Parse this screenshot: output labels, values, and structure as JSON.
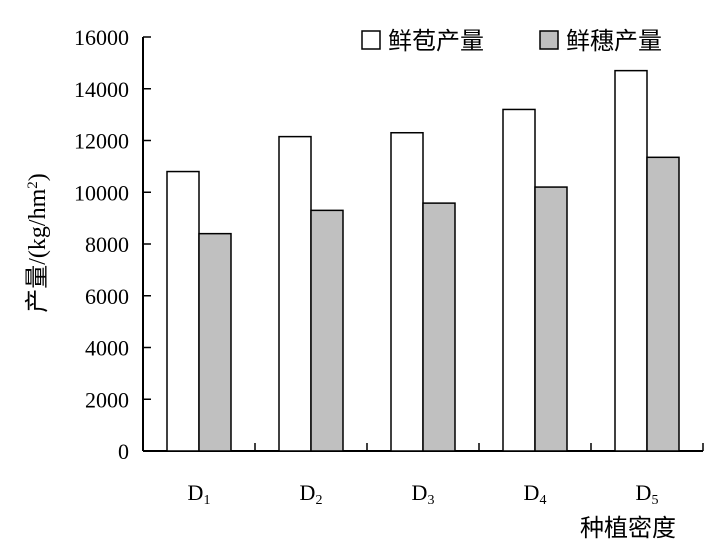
{
  "chart_data": {
    "type": "bar",
    "categories": [
      "D1",
      "D2",
      "D3",
      "D4",
      "D5"
    ],
    "category_labels": [
      {
        "main": "D",
        "sub": "1"
      },
      {
        "main": "D",
        "sub": "2"
      },
      {
        "main": "D",
        "sub": "3"
      },
      {
        "main": "D",
        "sub": "4"
      },
      {
        "main": "D",
        "sub": "5"
      }
    ],
    "series": [
      {
        "name": "鲜苞产量",
        "color": "#ffffff",
        "values": [
          10800,
          12150,
          12300,
          13200,
          14700
        ]
      },
      {
        "name": "鲜穗产量",
        "color": "#c0c0c0",
        "values": [
          8400,
          9300,
          9580,
          10200,
          11350
        ]
      }
    ],
    "xlabel": "种植密度",
    "ylabel": {
      "main": "产量/(kg/hm",
      "sup": "2",
      "tail": ")"
    },
    "ylim": [
      0,
      16000
    ],
    "yticks": [
      0,
      2000,
      4000,
      6000,
      8000,
      10000,
      12000,
      14000,
      16000
    ],
    "grid": false,
    "legend_position": "top-right"
  }
}
